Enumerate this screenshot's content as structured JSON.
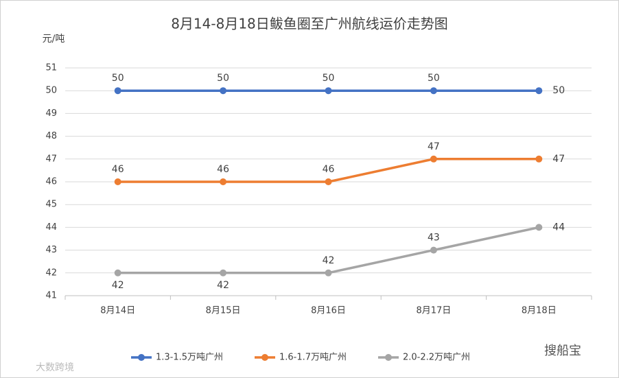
{
  "chart_data": {
    "type": "line",
    "title": "8月14-8月18日鲅鱼圈至广州航线运价走势图",
    "y_label": "元/吨",
    "categories": [
      "8月14日",
      "8月15日",
      "8月16日",
      "8月17日",
      "8月18日"
    ],
    "series": [
      {
        "name": "1.3-1.5万吨广州",
        "color": "#4472c4",
        "values": [
          50,
          50,
          50,
          50,
          50
        ]
      },
      {
        "name": "1.6-1.7万吨广州",
        "color": "#ed7d31",
        "values": [
          46,
          46,
          46,
          47,
          47
        ]
      },
      {
        "name": "2.0-2.2万吨广州",
        "color": "#a5a5a5",
        "values": [
          42,
          42,
          42,
          43,
          44
        ]
      }
    ],
    "ylim": [
      41,
      51
    ],
    "yticks": [
      41,
      42,
      43,
      44,
      45,
      46,
      47,
      48,
      49,
      50,
      51
    ],
    "grid": true,
    "legend": "bottom",
    "watermarks": [
      "搜船宝",
      "大数跨境"
    ]
  }
}
